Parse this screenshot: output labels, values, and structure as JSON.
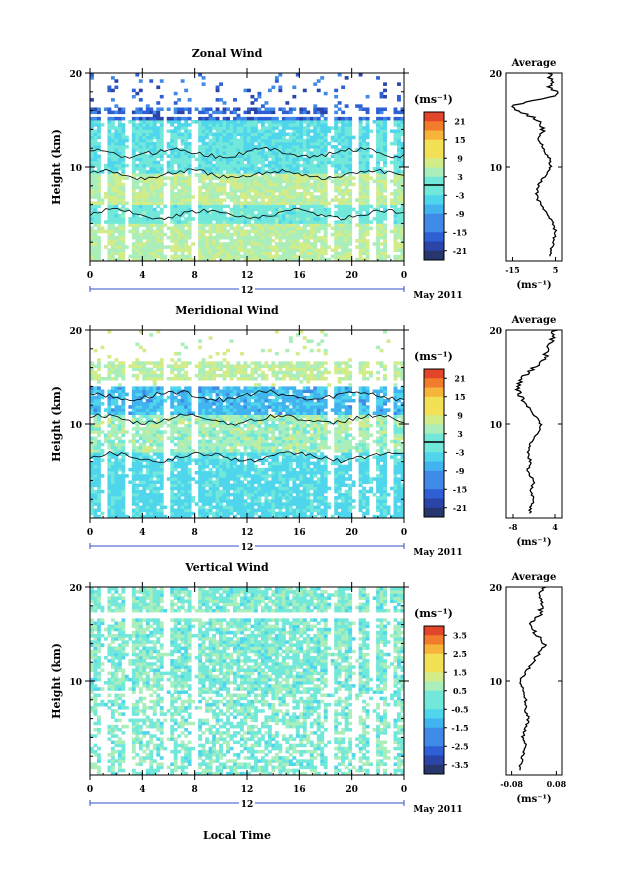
{
  "chart_data": [
    {
      "type": "heatmap",
      "title": "Zonal Wind",
      "ylabel": "Height (km)",
      "ylim": [
        0,
        20
      ],
      "yticks": [
        10,
        20
      ],
      "xlim": [
        0,
        24
      ],
      "xticks": [
        "0",
        "4",
        "8",
        "12",
        "16",
        "20",
        "0"
      ],
      "date_label": "12",
      "month_label": "May 2011",
      "colorbar": {
        "unit": "(ms⁻¹)",
        "range": [
          -24,
          24
        ],
        "ticks": [
          "21",
          "15",
          "9",
          "3",
          "-3",
          "-9",
          "-15",
          "-21"
        ]
      },
      "average": {
        "title": "Average",
        "xticks": [
          "-15",
          "5"
        ],
        "xlim": [
          -18,
          8
        ],
        "unit": "(ms⁻¹)",
        "profile": [
          [
            1,
            3
          ],
          [
            2,
            4
          ],
          [
            3,
            5
          ],
          [
            4,
            4
          ],
          [
            5,
            1
          ],
          [
            6,
            -2
          ],
          [
            7,
            -4
          ],
          [
            8,
            -3
          ],
          [
            9,
            0
          ],
          [
            10,
            3
          ],
          [
            11,
            2
          ],
          [
            12,
            -1
          ],
          [
            13,
            -2
          ],
          [
            14,
            -1
          ],
          [
            15,
            -3
          ],
          [
            16,
            -12
          ],
          [
            16.5,
            -16
          ],
          [
            17,
            -6
          ],
          [
            17.5,
            4
          ],
          [
            18,
            6
          ],
          [
            18.5,
            2
          ],
          [
            19,
            3
          ],
          [
            20,
            2
          ]
        ]
      }
    },
    {
      "type": "heatmap",
      "title": "Meridional Wind",
      "ylabel": "Height (km)",
      "ylim": [
        0,
        20
      ],
      "yticks": [
        10,
        20
      ],
      "xlim": [
        0,
        24
      ],
      "xticks": [
        "0",
        "4",
        "8",
        "12",
        "16",
        "20",
        "0"
      ],
      "date_label": "12",
      "month_label": "May 2011",
      "colorbar": {
        "unit": "(ms⁻¹)",
        "range": [
          -24,
          24
        ],
        "ticks": [
          "21",
          "15",
          "9",
          "3",
          "-3",
          "-9",
          "-15",
          "-21"
        ]
      },
      "average": {
        "title": "Average",
        "xticks": [
          "-8",
          "4"
        ],
        "xlim": [
          -10,
          6
        ],
        "unit": "(ms⁻¹)",
        "profile": [
          [
            1,
            -3
          ],
          [
            2,
            -2
          ],
          [
            3,
            -3
          ],
          [
            4,
            -2
          ],
          [
            5,
            -4
          ],
          [
            6,
            -3
          ],
          [
            7,
            -4
          ],
          [
            8,
            -3
          ],
          [
            9,
            -1
          ],
          [
            10,
            0
          ],
          [
            11,
            -2
          ],
          [
            12,
            -4
          ],
          [
            13,
            -6
          ],
          [
            14,
            -7
          ],
          [
            15,
            -5
          ],
          [
            16,
            -2
          ],
          [
            17,
            1
          ],
          [
            18,
            2
          ],
          [
            19,
            3
          ],
          [
            20,
            4
          ]
        ]
      }
    },
    {
      "type": "heatmap",
      "title": "Vertical Wind",
      "ylabel": "Height (km)",
      "xlabel": "Local Time",
      "ylim": [
        0,
        20
      ],
      "yticks": [
        10,
        20
      ],
      "xlim": [
        0,
        24
      ],
      "xticks": [
        "0",
        "4",
        "8",
        "12",
        "16",
        "20",
        "0"
      ],
      "date_label": "12",
      "month_label": "May 2011",
      "colorbar": {
        "unit": "(ms⁻¹)",
        "range": [
          -4,
          4
        ],
        "ticks": [
          "3.5",
          "2.5",
          "1.5",
          "0.5",
          "-0.5",
          "-1.5",
          "-2.5",
          "-3.5"
        ]
      },
      "average": {
        "title": "Average",
        "xticks": [
          "-0.08",
          "0.08"
        ],
        "xlim": [
          -0.1,
          0.1
        ],
        "unit": "(ms⁻¹)",
        "profile": [
          [
            1,
            -0.05
          ],
          [
            2,
            -0.04
          ],
          [
            3,
            -0.03
          ],
          [
            4,
            -0.04
          ],
          [
            5,
            -0.03
          ],
          [
            6,
            -0.02
          ],
          [
            7,
            -0.03
          ],
          [
            8,
            -0.03
          ],
          [
            9,
            -0.04
          ],
          [
            10,
            -0.05
          ],
          [
            11,
            -0.03
          ],
          [
            12,
            0
          ],
          [
            13,
            0.02
          ],
          [
            14,
            0.04
          ],
          [
            15,
            0.01
          ],
          [
            16,
            -0.02
          ],
          [
            17,
            0.02
          ],
          [
            18,
            0.03
          ],
          [
            19,
            0.02
          ],
          [
            20,
            0.04
          ]
        ]
      }
    }
  ]
}
